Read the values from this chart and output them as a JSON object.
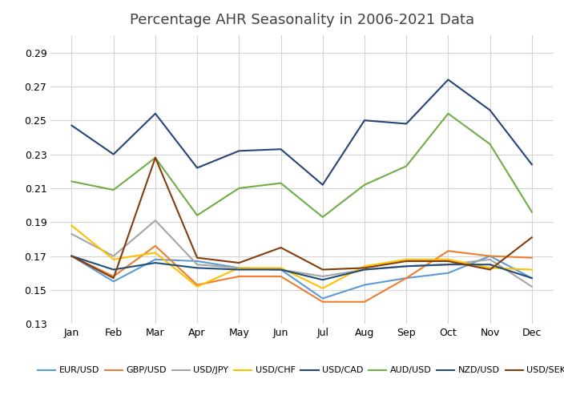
{
  "title": "Percentage AHR Seasonality in 2006-2021 Data",
  "months": [
    "Jan",
    "Feb",
    "Mar",
    "Apr",
    "May",
    "Jun",
    "Jul",
    "Aug",
    "Sep",
    "Oct",
    "Nov",
    "Dec"
  ],
  "series": {
    "EUR/USD": {
      "color": "#5b9bd5",
      "values": [
        0.17,
        0.155,
        0.168,
        0.167,
        0.163,
        0.162,
        0.145,
        0.153,
        0.157,
        0.16,
        0.17,
        0.157
      ]
    },
    "GBP/USD": {
      "color": "#ed7d31",
      "values": [
        0.17,
        0.158,
        0.176,
        0.153,
        0.158,
        0.158,
        0.143,
        0.143,
        0.157,
        0.173,
        0.17,
        0.169
      ]
    },
    "USD/JPY": {
      "color": "#a5a5a5",
      "values": [
        0.183,
        0.17,
        0.191,
        0.165,
        0.163,
        0.162,
        0.158,
        0.162,
        0.164,
        0.165,
        0.168,
        0.152
      ]
    },
    "USD/CHF": {
      "color": "#ffc000",
      "values": [
        0.188,
        0.168,
        0.172,
        0.152,
        0.163,
        0.163,
        0.151,
        0.164,
        0.168,
        0.168,
        0.163,
        0.162
      ]
    },
    "USD/CAD": {
      "color": "#264478",
      "values": [
        0.247,
        0.23,
        0.254,
        0.222,
        0.232,
        0.233,
        0.212,
        0.25,
        0.248,
        0.274,
        0.256,
        0.224
      ]
    },
    "AUD/USD": {
      "color": "#70ad47",
      "values": [
        0.214,
        0.209,
        0.228,
        0.194,
        0.21,
        0.213,
        0.193,
        0.212,
        0.223,
        0.254,
        0.236,
        0.196
      ]
    },
    "NZD/USD": {
      "color": "#1f4e79",
      "values": [
        0.17,
        0.162,
        0.166,
        0.163,
        0.162,
        0.162,
        0.156,
        0.162,
        0.164,
        0.165,
        0.165,
        0.157
      ]
    },
    "USD/SEK": {
      "color": "#843c0c",
      "values": [
        0.17,
        0.157,
        0.228,
        0.169,
        0.166,
        0.175,
        0.162,
        0.163,
        0.167,
        0.167,
        0.162,
        0.181
      ]
    }
  },
  "ylim": [
    0.13,
    0.3
  ],
  "yticks": [
    0.13,
    0.15,
    0.17,
    0.19,
    0.21,
    0.23,
    0.25,
    0.27,
    0.29
  ],
  "legend_order": [
    "EUR/USD",
    "GBP/USD",
    "USD/JPY",
    "USD/CHF",
    "USD/CAD",
    "AUD/USD",
    "NZD/USD",
    "USD/SEK"
  ],
  "title_color": "#404040",
  "title_fontsize": 13,
  "background_color": "#ffffff",
  "grid_color": "#d3d3d3",
  "tick_fontsize": 9,
  "legend_fontsize": 8
}
